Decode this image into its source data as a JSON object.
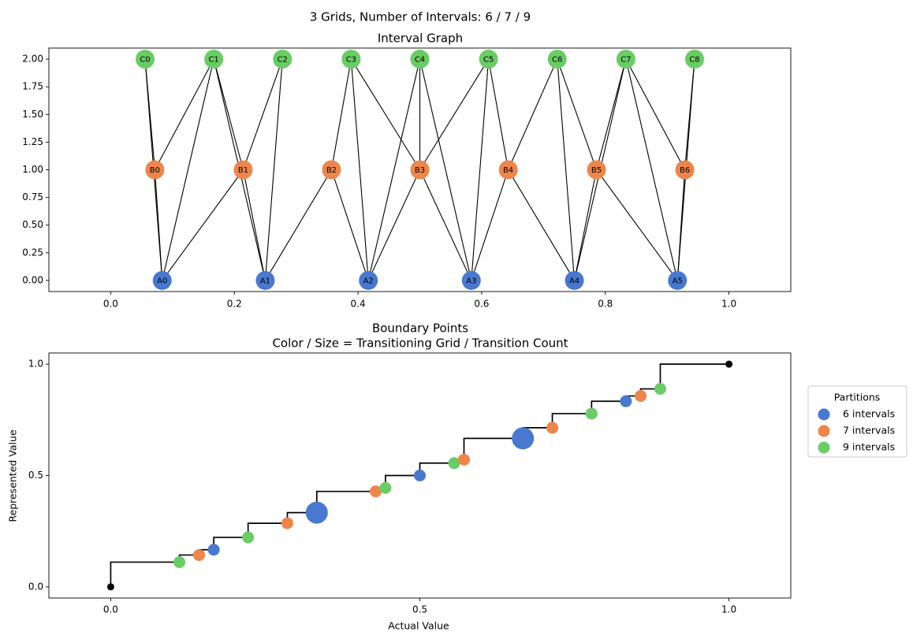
{
  "suptitle": "3 Grids, Number of Intervals: 6 / 7 / 9",
  "colors": {
    "grid6": "#4878d0",
    "grid7": "#ee854a",
    "grid9": "#6acc64",
    "edge": "#000000",
    "step": "#000000"
  },
  "chart_data": [
    {
      "type": "scatter",
      "title": "Interval Graph",
      "xlabel": "",
      "ylabel": "",
      "xlim": [
        -0.1,
        1.1
      ],
      "ylim": [
        -0.1,
        2.1
      ],
      "x_ticks": [
        "0.0",
        "0.2",
        "0.4",
        "0.6",
        "0.8",
        "1.0"
      ],
      "y_ticks": [
        "0.00",
        "0.25",
        "0.50",
        "0.75",
        "1.00",
        "1.25",
        "1.50",
        "1.75",
        "2.00"
      ],
      "grid": false,
      "nodes": [
        {
          "label": "A0",
          "x": 0.0833,
          "y": 0,
          "grid": "grid6"
        },
        {
          "label": "A1",
          "x": 0.25,
          "y": 0,
          "grid": "grid6"
        },
        {
          "label": "A2",
          "x": 0.4167,
          "y": 0,
          "grid": "grid6"
        },
        {
          "label": "A3",
          "x": 0.5833,
          "y": 0,
          "grid": "grid6"
        },
        {
          "label": "A4",
          "x": 0.75,
          "y": 0,
          "grid": "grid6"
        },
        {
          "label": "A5",
          "x": 0.9167,
          "y": 0,
          "grid": "grid6"
        },
        {
          "label": "B0",
          "x": 0.0714,
          "y": 1,
          "grid": "grid7"
        },
        {
          "label": "B1",
          "x": 0.2143,
          "y": 1,
          "grid": "grid7"
        },
        {
          "label": "B2",
          "x": 0.3571,
          "y": 1,
          "grid": "grid7"
        },
        {
          "label": "B3",
          "x": 0.5,
          "y": 1,
          "grid": "grid7"
        },
        {
          "label": "B4",
          "x": 0.6429,
          "y": 1,
          "grid": "grid7"
        },
        {
          "label": "B5",
          "x": 0.7857,
          "y": 1,
          "grid": "grid7"
        },
        {
          "label": "B6",
          "x": 0.9286,
          "y": 1,
          "grid": "grid7"
        },
        {
          "label": "C0",
          "x": 0.0556,
          "y": 2,
          "grid": "grid9"
        },
        {
          "label": "C1",
          "x": 0.1667,
          "y": 2,
          "grid": "grid9"
        },
        {
          "label": "C2",
          "x": 0.2778,
          "y": 2,
          "grid": "grid9"
        },
        {
          "label": "C3",
          "x": 0.3889,
          "y": 2,
          "grid": "grid9"
        },
        {
          "label": "C4",
          "x": 0.5,
          "y": 2,
          "grid": "grid9"
        },
        {
          "label": "C5",
          "x": 0.6111,
          "y": 2,
          "grid": "grid9"
        },
        {
          "label": "C6",
          "x": 0.7222,
          "y": 2,
          "grid": "grid9"
        },
        {
          "label": "C7",
          "x": 0.8333,
          "y": 2,
          "grid": "grid9"
        },
        {
          "label": "C8",
          "x": 0.9444,
          "y": 2,
          "grid": "grid9"
        }
      ],
      "edges": [
        [
          "A0",
          "B0"
        ],
        [
          "A0",
          "B1"
        ],
        [
          "A1",
          "B1"
        ],
        [
          "A1",
          "B2"
        ],
        [
          "A2",
          "B2"
        ],
        [
          "A2",
          "B3"
        ],
        [
          "A3",
          "B3"
        ],
        [
          "A3",
          "B4"
        ],
        [
          "A4",
          "B4"
        ],
        [
          "A4",
          "B5"
        ],
        [
          "A5",
          "B5"
        ],
        [
          "A5",
          "B6"
        ],
        [
          "A0",
          "C0"
        ],
        [
          "A0",
          "C1"
        ],
        [
          "A1",
          "C1"
        ],
        [
          "A1",
          "C2"
        ],
        [
          "A2",
          "C3"
        ],
        [
          "A2",
          "C4"
        ],
        [
          "A3",
          "C4"
        ],
        [
          "A3",
          "C5"
        ],
        [
          "A4",
          "C6"
        ],
        [
          "A4",
          "C7"
        ],
        [
          "A5",
          "C7"
        ],
        [
          "A5",
          "C8"
        ],
        [
          "B0",
          "C0"
        ],
        [
          "B0",
          "C1"
        ],
        [
          "B1",
          "C1"
        ],
        [
          "B1",
          "C2"
        ],
        [
          "B2",
          "C3"
        ],
        [
          "B3",
          "C3"
        ],
        [
          "B3",
          "C4"
        ],
        [
          "B3",
          "C5"
        ],
        [
          "B4",
          "C5"
        ],
        [
          "B4",
          "C6"
        ],
        [
          "B5",
          "C6"
        ],
        [
          "B5",
          "C7"
        ],
        [
          "B6",
          "C7"
        ],
        [
          "B6",
          "C8"
        ]
      ]
    },
    {
      "type": "scatter",
      "title": "Boundary Points",
      "subtitle": "Color / Size = Transitioning Grid / Transition Count",
      "xlabel": "Actual Value",
      "ylabel": "Represented Value",
      "xlim": [
        -0.1,
        1.1
      ],
      "ylim": [
        -0.05,
        1.05
      ],
      "x_ticks": [
        "0.0",
        "0.5",
        "1.0"
      ],
      "y_ticks": [
        "0.0",
        "0.5",
        "1.0"
      ],
      "grid": false,
      "legend": {
        "title": "Partitions",
        "placement": "outside-right",
        "entries": [
          {
            "label": "6 intervals",
            "grid": "grid6"
          },
          {
            "label": "7 intervals",
            "grid": "grid7"
          },
          {
            "label": "9 intervals",
            "grid": "grid9"
          }
        ]
      },
      "endpoints": [
        [
          0,
          0
        ],
        [
          1,
          1
        ]
      ],
      "points": [
        {
          "x": 0.1111,
          "y": 0.1111,
          "grid": "grid9",
          "count": 1
        },
        {
          "x": 0.1429,
          "y": 0.1429,
          "grid": "grid7",
          "count": 1
        },
        {
          "x": 0.1667,
          "y": 0.1667,
          "grid": "grid6",
          "count": 1
        },
        {
          "x": 0.2222,
          "y": 0.2222,
          "grid": "grid9",
          "count": 1
        },
        {
          "x": 0.2857,
          "y": 0.2857,
          "grid": "grid7",
          "count": 1
        },
        {
          "x": 0.3333,
          "y": 0.3333,
          "grid": "grid6",
          "count": 2
        },
        {
          "x": 0.4286,
          "y": 0.4286,
          "grid": "grid7",
          "count": 1
        },
        {
          "x": 0.4444,
          "y": 0.4444,
          "grid": "grid9",
          "count": 1
        },
        {
          "x": 0.5,
          "y": 0.5,
          "grid": "grid6",
          "count": 1
        },
        {
          "x": 0.5556,
          "y": 0.5556,
          "grid": "grid9",
          "count": 1
        },
        {
          "x": 0.5714,
          "y": 0.5714,
          "grid": "grid7",
          "count": 1
        },
        {
          "x": 0.6667,
          "y": 0.6667,
          "grid": "grid6",
          "count": 2
        },
        {
          "x": 0.7143,
          "y": 0.7143,
          "grid": "grid7",
          "count": 1
        },
        {
          "x": 0.7778,
          "y": 0.7778,
          "grid": "grid9",
          "count": 1
        },
        {
          "x": 0.8333,
          "y": 0.8333,
          "grid": "grid6",
          "count": 1
        },
        {
          "x": 0.8571,
          "y": 0.8571,
          "grid": "grid7",
          "count": 1
        },
        {
          "x": 0.8889,
          "y": 0.8889,
          "grid": "grid9",
          "count": 1
        }
      ]
    }
  ]
}
